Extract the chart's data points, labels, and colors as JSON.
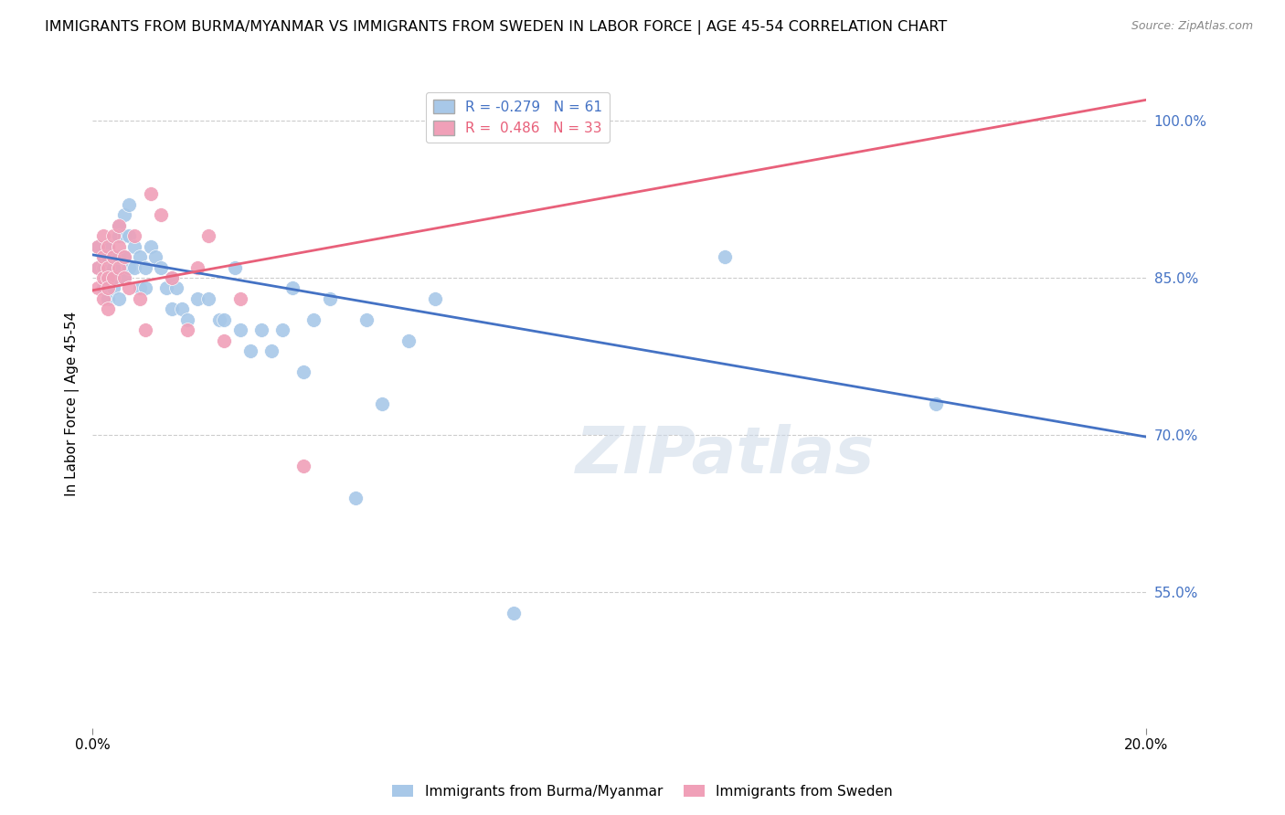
{
  "title": "IMMIGRANTS FROM BURMA/MYANMAR VS IMMIGRANTS FROM SWEDEN IN LABOR FORCE | AGE 45-54 CORRELATION CHART",
  "source": "Source: ZipAtlas.com",
  "ylabel": "In Labor Force | Age 45-54",
  "yticks": [
    "100.0%",
    "85.0%",
    "70.0%",
    "55.0%"
  ],
  "ytick_vals": [
    1.0,
    0.85,
    0.7,
    0.55
  ],
  "xlim": [
    0.0,
    0.2
  ],
  "ylim": [
    0.42,
    1.04
  ],
  "legend_r_blue": "-0.279",
  "legend_n_blue": "61",
  "legend_r_pink": "0.486",
  "legend_n_pink": "33",
  "legend_label_blue": "Immigrants from Burma/Myanmar",
  "legend_label_pink": "Immigrants from Sweden",
  "blue_color": "#a8c8e8",
  "pink_color": "#f0a0b8",
  "line_blue": "#4472c4",
  "line_pink": "#e8607a",
  "watermark": "ZIPatlas",
  "blue_line_x0": 0.0,
  "blue_line_y0": 0.872,
  "blue_line_x1": 0.2,
  "blue_line_y1": 0.698,
  "pink_line_x0": 0.0,
  "pink_line_y0": 0.838,
  "pink_line_x1": 0.2,
  "pink_line_y1": 1.02,
  "scatter_blue_x": [
    0.001,
    0.001,
    0.002,
    0.002,
    0.002,
    0.003,
    0.003,
    0.003,
    0.003,
    0.004,
    0.004,
    0.004,
    0.005,
    0.005,
    0.005,
    0.005,
    0.005,
    0.006,
    0.006,
    0.006,
    0.006,
    0.007,
    0.007,
    0.007,
    0.008,
    0.008,
    0.009,
    0.009,
    0.01,
    0.01,
    0.011,
    0.012,
    0.013,
    0.014,
    0.015,
    0.015,
    0.016,
    0.017,
    0.018,
    0.02,
    0.022,
    0.024,
    0.025,
    0.027,
    0.028,
    0.03,
    0.032,
    0.034,
    0.036,
    0.038,
    0.04,
    0.042,
    0.045,
    0.05,
    0.052,
    0.055,
    0.06,
    0.065,
    0.08,
    0.12,
    0.16
  ],
  "scatter_blue_y": [
    0.88,
    0.86,
    0.87,
    0.86,
    0.84,
    0.88,
    0.87,
    0.85,
    0.83,
    0.87,
    0.86,
    0.84,
    0.9,
    0.89,
    0.87,
    0.85,
    0.83,
    0.91,
    0.89,
    0.87,
    0.85,
    0.92,
    0.89,
    0.86,
    0.88,
    0.86,
    0.87,
    0.84,
    0.86,
    0.84,
    0.88,
    0.87,
    0.86,
    0.84,
    0.85,
    0.82,
    0.84,
    0.82,
    0.81,
    0.83,
    0.83,
    0.81,
    0.81,
    0.86,
    0.8,
    0.78,
    0.8,
    0.78,
    0.8,
    0.84,
    0.76,
    0.81,
    0.83,
    0.64,
    0.81,
    0.73,
    0.79,
    0.83,
    0.53,
    0.87,
    0.73
  ],
  "scatter_pink_x": [
    0.001,
    0.001,
    0.001,
    0.002,
    0.002,
    0.002,
    0.002,
    0.003,
    0.003,
    0.003,
    0.003,
    0.003,
    0.004,
    0.004,
    0.004,
    0.005,
    0.005,
    0.005,
    0.006,
    0.006,
    0.007,
    0.008,
    0.009,
    0.01,
    0.011,
    0.013,
    0.015,
    0.018,
    0.02,
    0.022,
    0.025,
    0.028,
    0.04
  ],
  "scatter_pink_y": [
    0.88,
    0.86,
    0.84,
    0.89,
    0.87,
    0.85,
    0.83,
    0.88,
    0.86,
    0.85,
    0.84,
    0.82,
    0.89,
    0.87,
    0.85,
    0.9,
    0.88,
    0.86,
    0.87,
    0.85,
    0.84,
    0.89,
    0.83,
    0.8,
    0.93,
    0.91,
    0.85,
    0.8,
    0.86,
    0.89,
    0.79,
    0.83,
    0.67
  ]
}
